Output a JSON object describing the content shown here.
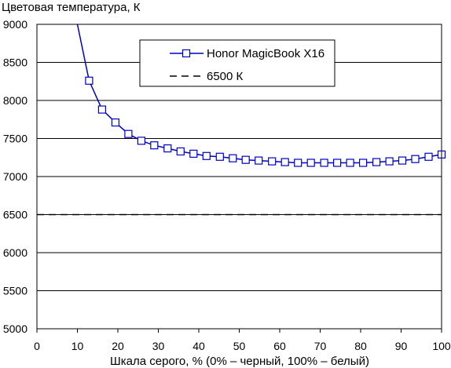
{
  "chart_data": {
    "type": "line",
    "ylabel": "Цветовая температура, К",
    "xlabel": "Шкала серого, % (0% – черный, 100% – белый)",
    "xlim": [
      0,
      100
    ],
    "ylim": [
      5000,
      9000
    ],
    "x_ticks": [
      0,
      10,
      20,
      30,
      40,
      50,
      60,
      70,
      80,
      90,
      100
    ],
    "y_ticks": [
      5000,
      5500,
      6000,
      6500,
      7000,
      7500,
      8000,
      8500,
      9000
    ],
    "grid": "horizontal",
    "legend_position": "top-right",
    "series": [
      {
        "name": "Honor MagicBook X16",
        "style": "solid-square-markers",
        "color": "#0000c8",
        "x": [
          10,
          12.9,
          16.1,
          19.4,
          22.6,
          25.8,
          29,
          32.3,
          35.5,
          38.7,
          41.9,
          45.2,
          48.4,
          51.6,
          54.8,
          58.1,
          61.3,
          64.5,
          67.7,
          71,
          74.2,
          77.4,
          80.6,
          83.9,
          87.1,
          90.3,
          93.5,
          96.8,
          100
        ],
        "y": [
          9000,
          8260,
          7880,
          7710,
          7560,
          7470,
          7410,
          7370,
          7330,
          7300,
          7270,
          7260,
          7240,
          7220,
          7210,
          7200,
          7190,
          7180,
          7180,
          7180,
          7180,
          7180,
          7180,
          7190,
          7200,
          7210,
          7230,
          7260,
          7290
        ]
      },
      {
        "name": "6500 К",
        "style": "dashed",
        "color": "#000000",
        "x": [
          0,
          100
        ],
        "y": [
          6500,
          6500
        ]
      }
    ]
  }
}
